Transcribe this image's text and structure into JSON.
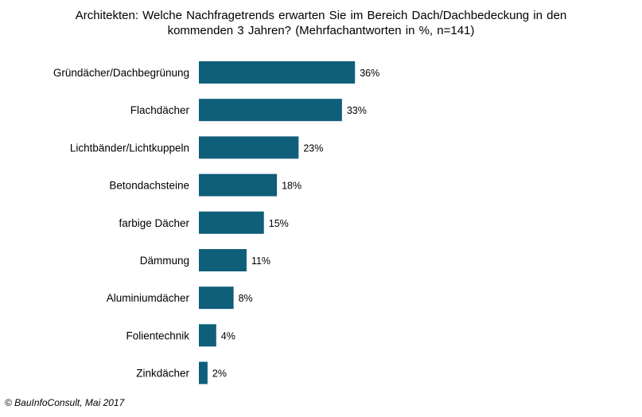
{
  "chart_data": {
    "type": "bar",
    "orientation": "horizontal",
    "title_lines": [
      "Architekten:  Welche Nachfragetrends  erwarten Sie im Bereich Dach/Dachbedeckung  in den",
      "kommenden  3 Jahren? (Mehrfachantworten  in %, n=141)"
    ],
    "categories": [
      "Gründächer/Dachbegrünung",
      "Flachdächer",
      "Lichtbänder/Lichtkuppeln",
      "Betondachsteine",
      "farbige Dächer",
      "Dämmung",
      "Aluminiumdächer",
      "Folientechnik",
      "Zinkdächer"
    ],
    "values": [
      36,
      33,
      23,
      18,
      15,
      11,
      8,
      4,
      2
    ],
    "value_labels": [
      "36%",
      "33%",
      "23%",
      "18%",
      "15%",
      "11%",
      "8%",
      "4%",
      "2%"
    ],
    "unit": "%",
    "bar_color": "#0f5e7a",
    "grid": false,
    "legend": "none"
  },
  "source": "© BauInfoConsult, Mai 2017"
}
